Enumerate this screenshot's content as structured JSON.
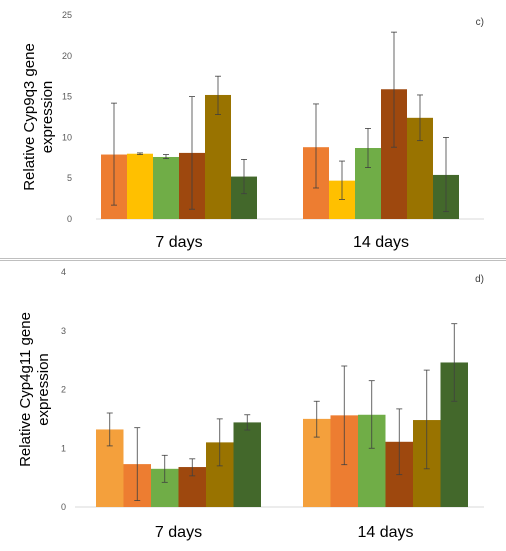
{
  "chart_data": [
    {
      "type": "bar",
      "panel_label": "c)",
      "ylabel": [
        "Relative Cyp9q3  gene",
        "expression"
      ],
      "ylim": [
        0,
        25
      ],
      "yticks": [
        0,
        5,
        10,
        15,
        20,
        25
      ],
      "categories": [
        "7 days",
        "14 days"
      ],
      "grid": false,
      "series": [
        {
          "color": "#ED7D31",
          "values": [
            7.9,
            8.8
          ],
          "err_low": [
            1.7,
            3.8
          ],
          "err_high": [
            14.2,
            14.1
          ]
        },
        {
          "color": "#FFC000",
          "values": [
            8.0,
            4.7
          ],
          "err_low": [
            7.9,
            2.4
          ],
          "err_high": [
            8.1,
            7.1
          ]
        },
        {
          "color": "#70AD47",
          "values": [
            7.6,
            8.7
          ],
          "err_low": [
            7.4,
            6.3
          ],
          "err_high": [
            7.9,
            11.1
          ]
        },
        {
          "color": "#9E480E",
          "values": [
            8.1,
            15.9
          ],
          "err_low": [
            1.2,
            8.8
          ],
          "err_high": [
            15.0,
            22.9
          ]
        },
        {
          "color": "#997300",
          "values": [
            15.2,
            12.4
          ],
          "err_low": [
            12.8,
            9.6
          ],
          "err_high": [
            17.5,
            15.2
          ]
        },
        {
          "color": "#43682B",
          "values": [
            5.2,
            5.4
          ],
          "err_low": [
            3.1,
            0.9
          ],
          "err_high": [
            7.3,
            10.0
          ]
        }
      ]
    },
    {
      "type": "bar",
      "panel_label": "d)",
      "ylabel": [
        "Relative Cyp4g11 gene",
        "expression"
      ],
      "ylim": [
        0,
        4
      ],
      "yticks": [
        0,
        1,
        2,
        3,
        4
      ],
      "categories": [
        "7 days",
        "14 days"
      ],
      "grid": false,
      "series": [
        {
          "color": "#F4A03C",
          "values": [
            1.32,
            1.5
          ],
          "err_low": [
            1.04,
            1.19
          ],
          "err_high": [
            1.6,
            1.8
          ]
        },
        {
          "color": "#ED7D31",
          "values": [
            0.73,
            1.56
          ],
          "err_low": [
            0.11,
            0.72
          ],
          "err_high": [
            1.35,
            2.4
          ]
        },
        {
          "color": "#70AD47",
          "values": [
            0.65,
            1.57
          ],
          "err_low": [
            0.42,
            1.0
          ],
          "err_high": [
            0.88,
            2.15
          ]
        },
        {
          "color": "#9E480E",
          "values": [
            0.68,
            1.11
          ],
          "err_low": [
            0.53,
            0.55
          ],
          "err_high": [
            0.82,
            1.67
          ]
        },
        {
          "color": "#997300",
          "values": [
            1.1,
            1.48
          ],
          "err_low": [
            0.7,
            0.65
          ],
          "err_high": [
            1.5,
            2.33
          ]
        },
        {
          "color": "#43682B",
          "values": [
            1.44,
            2.46
          ],
          "err_low": [
            1.31,
            1.8
          ],
          "err_high": [
            1.57,
            3.12
          ]
        }
      ]
    }
  ]
}
